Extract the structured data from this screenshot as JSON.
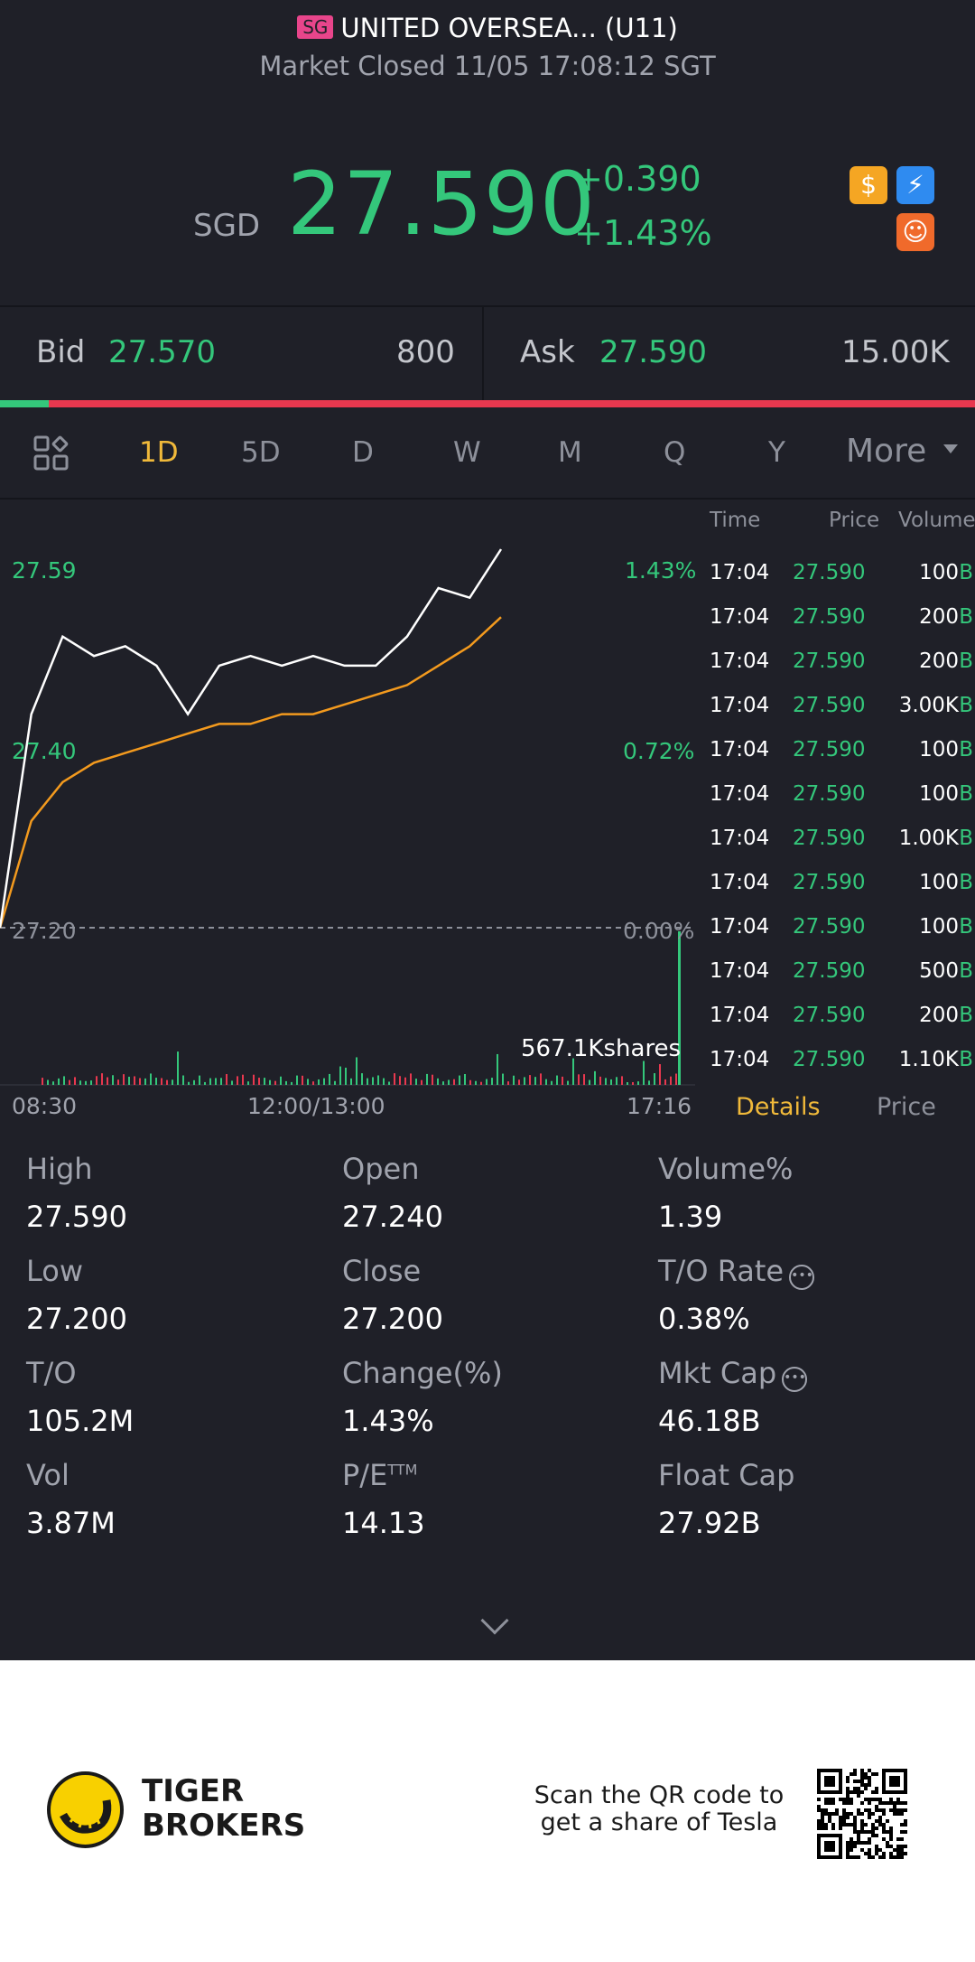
{
  "header": {
    "market_badge": "SG",
    "title": "UNITED OVERSEA... (U11)",
    "status": "Market Closed 11/05 17:08:12 SGT",
    "currency": "SGD",
    "price": "27.590",
    "change_abs": "+0.390",
    "change_pct": "+1.43%",
    "icons": [
      "dollar-icon",
      "lightning-icon",
      "robot-icon"
    ]
  },
  "bid_ask": {
    "bid_label": "Bid",
    "bid_price": "27.570",
    "bid_size": "800",
    "ask_label": "Ask",
    "ask_price": "27.590",
    "ask_size": "15.00K",
    "bid_ratio": 0.05
  },
  "periods": [
    "1D",
    "5D",
    "D",
    "W",
    "M",
    "Q",
    "Y"
  ],
  "active_period": "1D",
  "more_label": "More",
  "chart": {
    "y_labels": [
      "27.59",
      "27.40",
      "27.20"
    ],
    "pct_labels": [
      "1.43%",
      "0.72%",
      "0.00%"
    ],
    "x_labels": [
      "08:30",
      "12:00/13:00",
      "17:16"
    ],
    "volume_label": "567.1Kshares"
  },
  "chart_data": {
    "type": "line",
    "title": "",
    "x": [
      "08:30",
      "09:00",
      "09:30",
      "10:00",
      "10:30",
      "11:00",
      "11:30",
      "12:00/13:00",
      "13:30",
      "14:00",
      "14:30",
      "15:00",
      "15:30",
      "16:00",
      "16:30",
      "17:00",
      "17:16"
    ],
    "series": [
      {
        "values": [
          27.2,
          27.42,
          27.5,
          27.48,
          27.49,
          27.47,
          27.42,
          27.47,
          27.48,
          27.47,
          27.48,
          27.47,
          27.47,
          27.5,
          27.55,
          27.54,
          27.59
        ]
      },
      {
        "values": [
          27.2,
          27.31,
          27.35,
          27.37,
          27.38,
          27.39,
          27.4,
          27.41,
          27.41,
          27.42,
          27.42,
          27.43,
          27.44,
          27.45,
          27.47,
          27.49,
          27.52
        ]
      }
    ],
    "ylim": [
      27.2,
      27.59
    ],
    "grid": false
  },
  "ticker": {
    "headers": [
      "Time",
      "Price",
      "Volume"
    ],
    "rows": [
      {
        "time": "17:04",
        "price": "27.590",
        "volume": "100",
        "side": "B"
      },
      {
        "time": "17:04",
        "price": "27.590",
        "volume": "200",
        "side": "B"
      },
      {
        "time": "17:04",
        "price": "27.590",
        "volume": "200",
        "side": "B"
      },
      {
        "time": "17:04",
        "price": "27.590",
        "volume": "3.00K",
        "side": "B"
      },
      {
        "time": "17:04",
        "price": "27.590",
        "volume": "100",
        "side": "B"
      },
      {
        "time": "17:04",
        "price": "27.590",
        "volume": "100",
        "side": "B"
      },
      {
        "time": "17:04",
        "price": "27.590",
        "volume": "1.00K",
        "side": "B"
      },
      {
        "time": "17:04",
        "price": "27.590",
        "volume": "100",
        "side": "B"
      },
      {
        "time": "17:04",
        "price": "27.590",
        "volume": "100",
        "side": "B"
      },
      {
        "time": "17:04",
        "price": "27.590",
        "volume": "500",
        "side": "B"
      },
      {
        "time": "17:04",
        "price": "27.590",
        "volume": "200",
        "side": "B"
      },
      {
        "time": "17:04",
        "price": "27.590",
        "volume": "1.10K",
        "side": "B"
      }
    ],
    "tab_details": "Details",
    "tab_price": "Price"
  },
  "stats": [
    {
      "label": "High",
      "value": "27.590"
    },
    {
      "label": "Open",
      "value": "27.240"
    },
    {
      "label": "Volume%",
      "value": "1.39"
    },
    {
      "label": "Low",
      "value": "27.200"
    },
    {
      "label": "Close",
      "value": "27.200"
    },
    {
      "label": "T/O Rate",
      "value": "0.38%"
    },
    {
      "label": "T/O",
      "value": "105.2M"
    },
    {
      "label": "Change(%)",
      "value": "1.43%"
    },
    {
      "label": "Mkt Cap",
      "value": "46.18B"
    },
    {
      "label": "Vol",
      "value": "3.87M"
    },
    {
      "label": "P/E",
      "label_sup": "TTM",
      "value": "14.13"
    },
    {
      "label": "Float Cap",
      "value": "27.92B"
    }
  ],
  "footer": {
    "brand_line1": "TIGER",
    "brand_line2": "BROKERS",
    "scan_line1": "Scan the QR code to",
    "scan_line2": "get a share of Tesla"
  },
  "colors": {
    "background": "#1f2028",
    "up_green": "#34c77b",
    "down_red": "#e8384f",
    "accent_yellow": "#f0b93a",
    "avg_orange": "#f39a1e"
  }
}
